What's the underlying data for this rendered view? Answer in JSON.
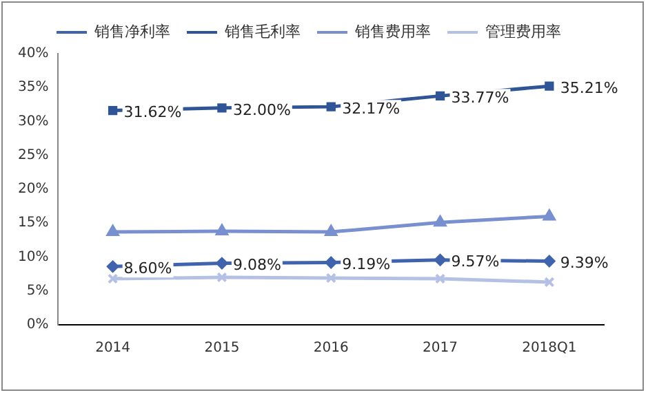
{
  "chart_data": {
    "type": "line",
    "categories": [
      "2014",
      "2015",
      "2016",
      "2017",
      "2018Q1"
    ],
    "series": [
      {
        "name": "销售净利率",
        "color": "#3f64ad",
        "marker": "diamond",
        "values": [
          8.6,
          9.08,
          9.19,
          9.57,
          9.39
        ],
        "value_labels": [
          "8.60%",
          "9.08%",
          "9.19%",
          "9.57%",
          "9.39%"
        ]
      },
      {
        "name": "销售毛利率",
        "color": "#2f5597",
        "marker": "square",
        "values": [
          31.62,
          32.0,
          32.17,
          33.77,
          35.21
        ],
        "value_labels": [
          "31.62%",
          "32.00%",
          "32.17%",
          "33.77%",
          "35.21%"
        ]
      },
      {
        "name": "销售费用率",
        "color": "#7890cf",
        "marker": "triangle",
        "values": [
          13.7,
          13.8,
          13.7,
          15.1,
          16.0
        ]
      },
      {
        "name": "管理费用率",
        "color": "#b4c1e4",
        "marker": "cross",
        "values": [
          6.8,
          7.0,
          6.9,
          6.8,
          6.3
        ]
      }
    ],
    "ylim": [
      0,
      40
    ],
    "yticks": [
      {
        "value": 0,
        "label": "0%"
      },
      {
        "value": 5,
        "label": "5%"
      },
      {
        "value": 10,
        "label": "10%"
      },
      {
        "value": 15,
        "label": "15%"
      },
      {
        "value": 20,
        "label": "20%"
      },
      {
        "value": 25,
        "label": "25%"
      },
      {
        "value": 30,
        "label": "30%"
      },
      {
        "value": 35,
        "label": "35%"
      },
      {
        "value": 40,
        "label": "40%"
      }
    ],
    "grid": false,
    "legend": "top"
  }
}
